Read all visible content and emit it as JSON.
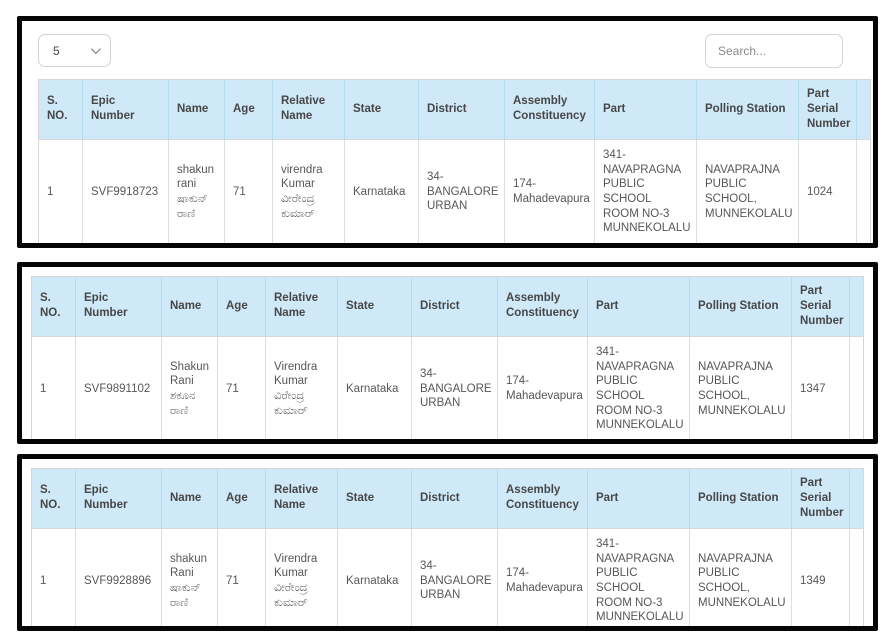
{
  "controls": {
    "page_size": "5",
    "search_placeholder": "Search..."
  },
  "headers": {
    "s_no": "S. NO.",
    "epic": "Epic Number",
    "name": "Name",
    "age": "Age",
    "relative": "Relative Name",
    "state": "State",
    "district": "District",
    "assembly": "Assembly Constituency",
    "part": "Part",
    "polling": "Polling Station",
    "part_serial": "Part Serial Number"
  },
  "records": [
    {
      "s_no": "1",
      "epic": "SVF9918723",
      "name_en": "shakun rani",
      "name_kn": "ಷಾಕುನ್ ರಾಣಿ",
      "age": "71",
      "relative_en": "virendra Kumar",
      "relative_kn": "ವೀರೇಂದ್ರ ಕುಮಾರ್",
      "state": "Karnataka",
      "district": "34-BANGALORE URBAN",
      "assembly": "174-Mahadevapura",
      "part": "341-NAVAPRAGNA PUBLIC SCHOOL ROOM NO-3 MUNNEKOLALU",
      "polling": "NAVAPRAJNA PUBLIC SCHOOL, MUNNEKOLALU",
      "part_serial": "1024"
    },
    {
      "s_no": "1",
      "epic": "SVF9891102",
      "name_en": "Shakun Rani",
      "name_kn": "ಶಕೂನ ರಾಣಿ",
      "age": "71",
      "relative_en": "Virendra Kumar",
      "relative_kn": "ವಿರೇಂದ್ರ ಕುಮಾರ್",
      "state": "Karnataka",
      "district": "34-BANGALORE URBAN",
      "assembly": "174-Mahadevapura",
      "part": "341-NAVAPRAGNA PUBLIC SCHOOL ROOM NO-3 MUNNEKOLALU",
      "polling": "NAVAPRAJNA PUBLIC SCHOOL, MUNNEKOLALU",
      "part_serial": "1347"
    },
    {
      "s_no": "1",
      "epic": "SVF9928896",
      "name_en": "shakun Rani",
      "name_kn": "ಷಾಕುನ್ ರಾಣಿ",
      "age": "71",
      "relative_en": "Virendra Kumar",
      "relative_kn": "ವೀರೇಂದ್ರ ಕುಮಾರ್",
      "state": "Karnataka",
      "district": "34-BANGALORE URBAN",
      "assembly": "174-Mahadevapura",
      "part": "341-NAVAPRAGNA PUBLIC SCHOOL ROOM NO-3 MUNNEKOLALU",
      "polling": "NAVAPRAJNA PUBLIC SCHOOL, MUNNEKOLALU",
      "part_serial": "1349"
    }
  ],
  "colors": {
    "header_bg": "#cfe9f8",
    "panel_border": "#050505",
    "cell_border": "#dedede",
    "text": "#575757"
  }
}
